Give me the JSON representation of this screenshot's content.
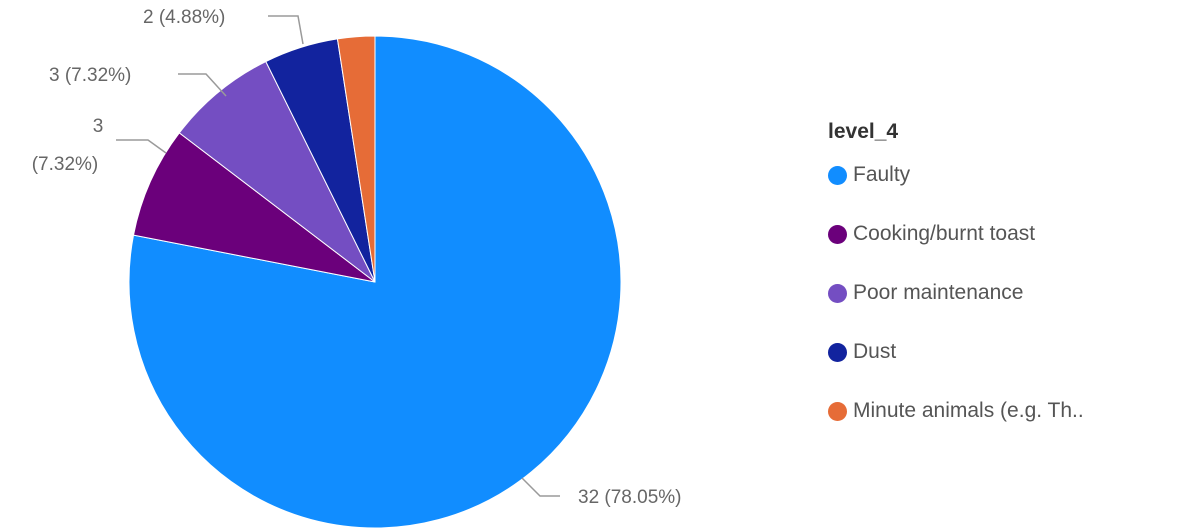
{
  "chart_data": {
    "type": "pie",
    "legend_title": "level_4",
    "legend_position": "right",
    "slices": [
      {
        "label": "Faulty",
        "value": 32,
        "percent": "78.05%",
        "data_label": "32 (78.05%)",
        "color": "#118DFF"
      },
      {
        "label": "Cooking/burnt toast",
        "value": 3,
        "percent": "7.32%",
        "data_label_lines": [
          "3",
          "(7.32%)"
        ],
        "color": "#6B007B"
      },
      {
        "label": "Poor maintenance",
        "value": 3,
        "percent": "7.32%",
        "data_label": "3 (7.32%)",
        "color": "#744EC2"
      },
      {
        "label": "Dust",
        "value": 2,
        "percent": "4.88%",
        "data_label": "2 (4.88%)",
        "color": "#12239E"
      },
      {
        "label": "Minute animals (e.g. Th..",
        "value": 1,
        "percent": "2.44%",
        "color": "#E66C37"
      }
    ]
  }
}
